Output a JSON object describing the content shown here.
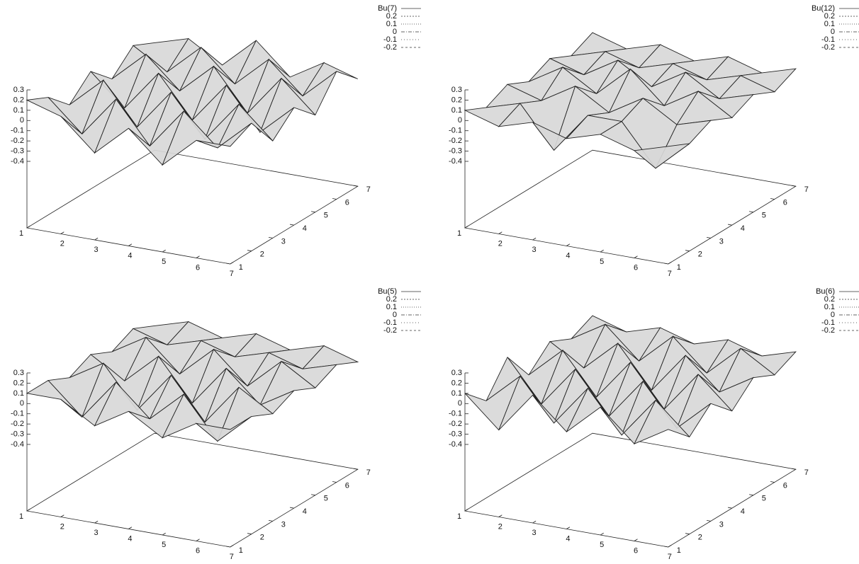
{
  "chart_data": [
    {
      "type": "surface",
      "legend_title": "Bu(7)",
      "contour_levels": [
        0.2,
        0.1,
        0,
        -0.1,
        -0.2
      ],
      "x": [
        1,
        2,
        3,
        4,
        5,
        6,
        7
      ],
      "y": [
        1,
        2,
        3,
        4,
        5,
        6,
        7
      ],
      "xlim": [
        1,
        7
      ],
      "ylim": [
        1,
        7
      ],
      "zlim": [
        -0.4,
        0.3
      ],
      "xticks": [
        1,
        2,
        3,
        4,
        5,
        6,
        7
      ],
      "yticks": [
        1,
        2,
        3,
        4,
        5,
        6,
        7
      ],
      "zticks": [
        0.3,
        0.2,
        0.1,
        0,
        -0.1,
        -0.2,
        -0.3,
        -0.4
      ],
      "z": [
        [
          0.2,
          0.1,
          -0.2,
          0.1,
          -0.2,
          0.1,
          0.1
        ],
        [
          0.1,
          -0.2,
          0.2,
          -0.2,
          0.2,
          -0.1,
          0.2
        ],
        [
          -0.1,
          0.2,
          -0.2,
          0.2,
          -0.2,
          0.2,
          -0.1
        ],
        [
          0.1,
          -0.2,
          0.2,
          -0.2,
          0.2,
          -0.2,
          0.1
        ],
        [
          -0.1,
          0.2,
          -0.1,
          0.2,
          -0.2,
          0.2,
          -0.1
        ],
        [
          0.1,
          -0.1,
          0.2,
          -0.1,
          0.2,
          -0.1,
          0.2
        ],
        [
          0,
          0.1,
          -0.1,
          0.2,
          -0.1,
          0.1,
          0
        ]
      ]
    },
    {
      "type": "surface",
      "legend_title": "Bu(12)",
      "contour_levels": [
        0.2,
        0.1,
        0,
        -0.1,
        -0.2
      ],
      "x": [
        1,
        2,
        3,
        4,
        5,
        6,
        7
      ],
      "y": [
        1,
        2,
        3,
        4,
        5,
        6,
        7
      ],
      "xlim": [
        1,
        7
      ],
      "ylim": [
        1,
        7
      ],
      "zlim": [
        -0.4,
        0.3
      ],
      "xticks": [
        1,
        2,
        3,
        4,
        5,
        6,
        7
      ],
      "yticks": [
        1,
        2,
        3,
        4,
        5,
        6,
        7
      ],
      "zticks": [
        0.3,
        0.2,
        0.1,
        0,
        -0.1,
        -0.2,
        -0.3,
        -0.4
      ],
      "z": [
        [
          0.1,
          0,
          0.1,
          0,
          0.1,
          0,
          0.1
        ],
        [
          0,
          0.1,
          -0.3,
          0.1,
          0.1,
          -0.3,
          0
        ],
        [
          0.1,
          0,
          0.2,
          0,
          0.2,
          0,
          0.1
        ],
        [
          0,
          0.2,
          0,
          0.3,
          0,
          0.2,
          0
        ],
        [
          0.1,
          0,
          0.2,
          0,
          0.2,
          0,
          0.1
        ],
        [
          0,
          0.1,
          0,
          0.1,
          0,
          0.1,
          0
        ],
        [
          0.1,
          0,
          0.1,
          0,
          0.1,
          0,
          0.1
        ]
      ]
    },
    {
      "type": "surface",
      "legend_title": "Bu(5)",
      "contour_levels": [
        0.2,
        0.1,
        0,
        -0.1,
        -0.2
      ],
      "x": [
        1,
        2,
        3,
        4,
        5,
        6,
        7
      ],
      "y": [
        1,
        2,
        3,
        4,
        5,
        6,
        7
      ],
      "xlim": [
        1,
        7
      ],
      "ylim": [
        1,
        7
      ],
      "zlim": [
        -0.4,
        0.3
      ],
      "xticks": [
        1,
        2,
        3,
        4,
        5,
        6,
        7
      ],
      "yticks": [
        1,
        2,
        3,
        4,
        5,
        6,
        7
      ],
      "zticks": [
        0.3,
        0.2,
        0.1,
        0,
        -0.1,
        -0.2,
        -0.3,
        -0.4
      ],
      "z": [
        [
          0.1,
          0.1,
          -0.1,
          0.1,
          -0.1,
          0.1,
          0.1
        ],
        [
          0.1,
          -0.2,
          0.2,
          -0.1,
          0.2,
          -0.2,
          0.1
        ],
        [
          0,
          0.2,
          -0.2,
          0.2,
          -0.2,
          0.2,
          0
        ],
        [
          0.1,
          -0.1,
          0.2,
          -0.2,
          0.2,
          -0.1,
          0.1
        ],
        [
          0,
          0.2,
          -0.1,
          0.2,
          -0.1,
          0.2,
          0
        ],
        [
          0.1,
          0,
          0.1,
          0,
          0.1,
          0,
          0.1
        ],
        [
          0,
          0.1,
          0,
          0.1,
          0,
          0.1,
          0
        ]
      ]
    },
    {
      "type": "surface",
      "legend_title": "Bu(6)",
      "contour_levels": [
        0.2,
        0.1,
        0,
        -0.1,
        -0.2
      ],
      "x": [
        1,
        2,
        3,
        4,
        5,
        6,
        7
      ],
      "y": [
        1,
        2,
        3,
        4,
        5,
        6,
        7
      ],
      "xlim": [
        1,
        7
      ],
      "ylim": [
        1,
        7
      ],
      "zlim": [
        -0.4,
        0.3
      ],
      "xticks": [
        1,
        2,
        3,
        4,
        5,
        6,
        7
      ],
      "yticks": [
        1,
        2,
        3,
        4,
        5,
        6,
        7
      ],
      "zticks": [
        0.3,
        0.2,
        0.1,
        0,
        -0.1,
        -0.2,
        -0.3,
        -0.4
      ],
      "z": [
        [
          0.1,
          -0.2,
          0.2,
          -0.1,
          0.2,
          -0.1,
          0.1
        ],
        [
          -0.1,
          0.2,
          -0.2,
          0.2,
          -0.2,
          0.2,
          -0.1
        ],
        [
          0.2,
          -0.2,
          0.2,
          -0.2,
          0.2,
          -0.2,
          0.1
        ],
        [
          -0.1,
          0.2,
          -0.2,
          0.2,
          -0.2,
          0.2,
          -0.1
        ],
        [
          0.1,
          -0.1,
          0.2,
          -0.2,
          0.2,
          -0.1,
          0.1
        ],
        [
          0,
          0.2,
          -0.1,
          0.2,
          -0.1,
          0.2,
          0
        ],
        [
          0.1,
          0,
          0.1,
          0,
          0.1,
          0,
          0.1
        ]
      ]
    }
  ]
}
